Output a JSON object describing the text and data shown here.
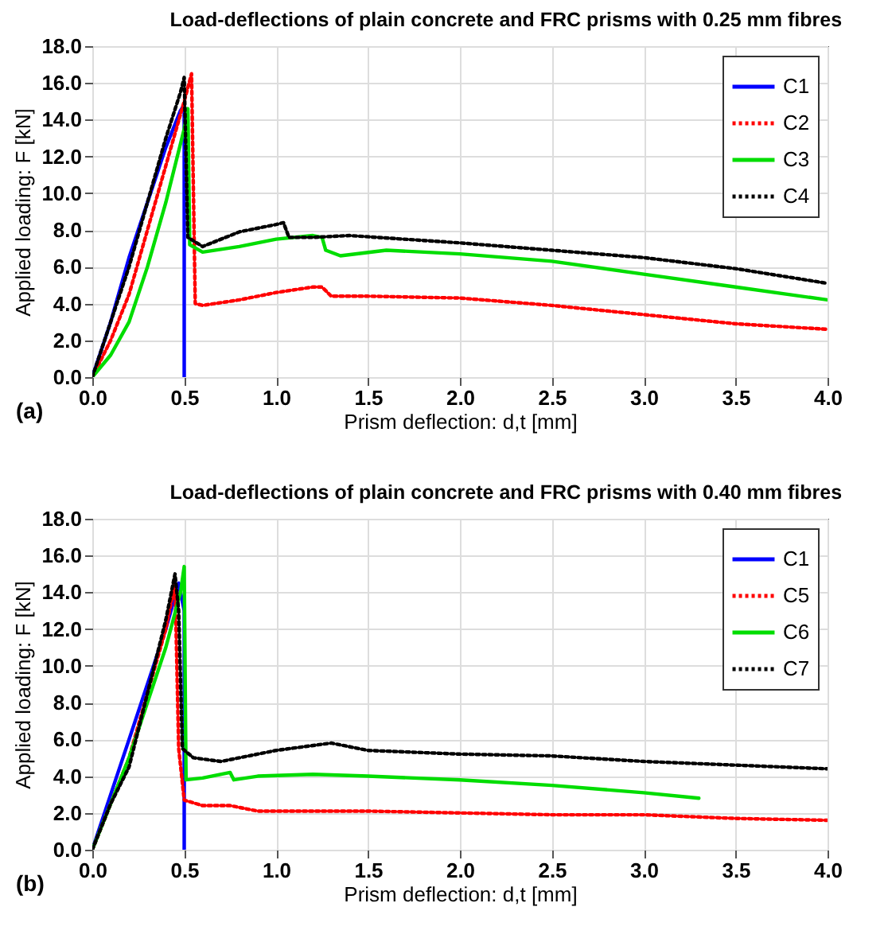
{
  "chart_data": [
    {
      "type": "line",
      "title": "Load-deflections of plain concrete and FRC prisms with 0.25 mm fibres",
      "xlabel": "Prism deflection: d,t [mm]",
      "ylabel": "Applied loading: F [kN]",
      "annotations": [
        "(a)"
      ],
      "xlim": [
        0,
        4
      ],
      "ylim": [
        0,
        18
      ],
      "xticks": [
        {
          "value": 0,
          "label": "0.0"
        },
        {
          "value": 0.5,
          "label": "0.5"
        },
        {
          "value": 1,
          "label": "1.0"
        },
        {
          "value": 1.5,
          "label": "1.5"
        },
        {
          "value": 2,
          "label": "2.0"
        },
        {
          "value": 2.5,
          "label": "2.5"
        },
        {
          "value": 3,
          "label": "3.0"
        },
        {
          "value": 3.5,
          "label": "3.5"
        },
        {
          "value": 4,
          "label": "4.0"
        }
      ],
      "yticks": [
        {
          "value": 0,
          "label": "0.0"
        },
        {
          "value": 2,
          "label": "2.0"
        },
        {
          "value": 4,
          "label": "4.0"
        },
        {
          "value": 6,
          "label": "6.0"
        },
        {
          "value": 8,
          "label": "8.0"
        },
        {
          "value": 10,
          "label": "10.0"
        },
        {
          "value": 12,
          "label": "12.0"
        },
        {
          "value": 14,
          "label": "14.0"
        },
        {
          "value": 16,
          "label": "16.0"
        },
        {
          "value": 18,
          "label": "18.0"
        }
      ],
      "grid": true,
      "legend": "top right",
      "series": [
        {
          "name": "C1",
          "color": "#0000ff",
          "line_style": "solid",
          "x": [
            0,
            0.1,
            0.2,
            0.3,
            0.4,
            0.48,
            0.5,
            0.5
          ],
          "values": [
            0,
            3,
            6.5,
            9.5,
            12.5,
            14.5,
            14.8,
            0
          ]
        },
        {
          "name": "C2",
          "color": "#ff0000",
          "line_style": "dotted",
          "x": [
            0,
            0.1,
            0.2,
            0.3,
            0.4,
            0.5,
            0.54,
            0.56,
            0.6,
            0.8,
            1.0,
            1.2,
            1.25,
            1.3,
            1.5,
            2.0,
            2.5,
            3.0,
            3.5,
            4.0
          ],
          "values": [
            0,
            2,
            4.5,
            8,
            11.5,
            15,
            16.5,
            4,
            3.9,
            4.2,
            4.6,
            4.9,
            4.9,
            4.4,
            4.4,
            4.3,
            3.9,
            3.4,
            2.9,
            2.6
          ]
        },
        {
          "name": "C3",
          "color": "#00dd00",
          "line_style": "solid",
          "x": [
            0,
            0.1,
            0.2,
            0.3,
            0.4,
            0.5,
            0.52,
            0.53,
            0.6,
            0.8,
            1.0,
            1.2,
            1.25,
            1.27,
            1.35,
            1.6,
            2.0,
            2.5,
            3.0,
            3.5,
            4.0
          ],
          "values": [
            0,
            1.2,
            3,
            6,
            9.5,
            13.5,
            14.6,
            7.2,
            6.8,
            7.1,
            7.5,
            7.7,
            7.6,
            6.9,
            6.6,
            6.9,
            6.7,
            6.3,
            5.6,
            4.9,
            4.2
          ]
        },
        {
          "name": "C4",
          "color": "#000000",
          "line_style": "dotted",
          "x": [
            0,
            0.1,
            0.2,
            0.3,
            0.4,
            0.48,
            0.5,
            0.52,
            0.6,
            0.8,
            1.0,
            1.04,
            1.07,
            1.2,
            1.4,
            2.0,
            2.5,
            3.0,
            3.5,
            4.0
          ],
          "values": [
            0,
            3,
            6,
            9.5,
            13,
            15.5,
            16.3,
            7.6,
            7.1,
            7.9,
            8.3,
            8.4,
            7.6,
            7.6,
            7.7,
            7.3,
            6.9,
            6.5,
            5.9,
            5.1
          ]
        }
      ]
    },
    {
      "type": "line",
      "title": "Load-deflections of plain concrete and FRC prisms with 0.40 mm fibres",
      "xlabel": "Prism deflection: d,t [mm]",
      "ylabel": "Applied loading: F [kN]",
      "annotations": [
        "(b)"
      ],
      "xlim": [
        0,
        4
      ],
      "ylim": [
        0,
        18
      ],
      "xticks": [
        {
          "value": 0,
          "label": "0.0"
        },
        {
          "value": 0.5,
          "label": "0.5"
        },
        {
          "value": 1,
          "label": "1.0"
        },
        {
          "value": 1.5,
          "label": "1.5"
        },
        {
          "value": 2,
          "label": "2.0"
        },
        {
          "value": 2.5,
          "label": "2.5"
        },
        {
          "value": 3,
          "label": "3.0"
        },
        {
          "value": 3.5,
          "label": "3.5"
        },
        {
          "value": 4,
          "label": "4.0"
        }
      ],
      "yticks": [
        {
          "value": 0,
          "label": "0.0"
        },
        {
          "value": 2,
          "label": "2.0"
        },
        {
          "value": 4,
          "label": "4.0"
        },
        {
          "value": 6,
          "label": "6.0"
        },
        {
          "value": 8,
          "label": "8.0"
        },
        {
          "value": 10,
          "label": "10.0"
        },
        {
          "value": 12,
          "label": "12.0"
        },
        {
          "value": 14,
          "label": "14.0"
        },
        {
          "value": 16,
          "label": "16.0"
        },
        {
          "value": 18,
          "label": "18.0"
        }
      ],
      "grid": true,
      "legend": "top right",
      "series": [
        {
          "name": "C1",
          "color": "#0000ff",
          "line_style": "solid",
          "x": [
            0,
            0.1,
            0.2,
            0.3,
            0.4,
            0.47,
            0.5,
            0.5
          ],
          "values": [
            0,
            3,
            6,
            9,
            12,
            14.5,
            13,
            0
          ]
        },
        {
          "name": "C5",
          "color": "#ff0000",
          "line_style": "dotted",
          "x": [
            0,
            0.1,
            0.2,
            0.3,
            0.4,
            0.45,
            0.47,
            0.5,
            0.6,
            0.75,
            0.9,
            1.0,
            1.5,
            2.0,
            2.5,
            3.0,
            3.5,
            4.0
          ],
          "values": [
            0,
            2.5,
            5,
            8.5,
            12,
            14.5,
            5.5,
            2.7,
            2.4,
            2.4,
            2.1,
            2.1,
            2.1,
            2.0,
            1.9,
            1.9,
            1.7,
            1.6
          ]
        },
        {
          "name": "C6",
          "color": "#00dd00",
          "line_style": "solid",
          "x": [
            0,
            0.1,
            0.2,
            0.3,
            0.4,
            0.48,
            0.5,
            0.51,
            0.6,
            0.75,
            0.77,
            0.9,
            1.2,
            1.5,
            2.0,
            2.5,
            3.0,
            3.3
          ],
          "values": [
            0,
            2.5,
            5,
            8,
            11,
            14,
            15.4,
            3.8,
            3.9,
            4.2,
            3.8,
            4.0,
            4.1,
            4.0,
            3.8,
            3.5,
            3.1,
            2.8
          ]
        },
        {
          "name": "C7",
          "color": "#000000",
          "line_style": "dotted",
          "x": [
            0,
            0.1,
            0.2,
            0.3,
            0.4,
            0.45,
            0.47,
            0.49,
            0.55,
            0.7,
            1.0,
            1.3,
            1.5,
            2.0,
            2.5,
            3.0,
            3.5,
            4.0
          ],
          "values": [
            0,
            2.5,
            4.5,
            8.5,
            12.5,
            15,
            13,
            5.5,
            5,
            4.8,
            5.4,
            5.8,
            5.4,
            5.2,
            5.1,
            4.8,
            4.6,
            4.4
          ]
        }
      ]
    }
  ]
}
